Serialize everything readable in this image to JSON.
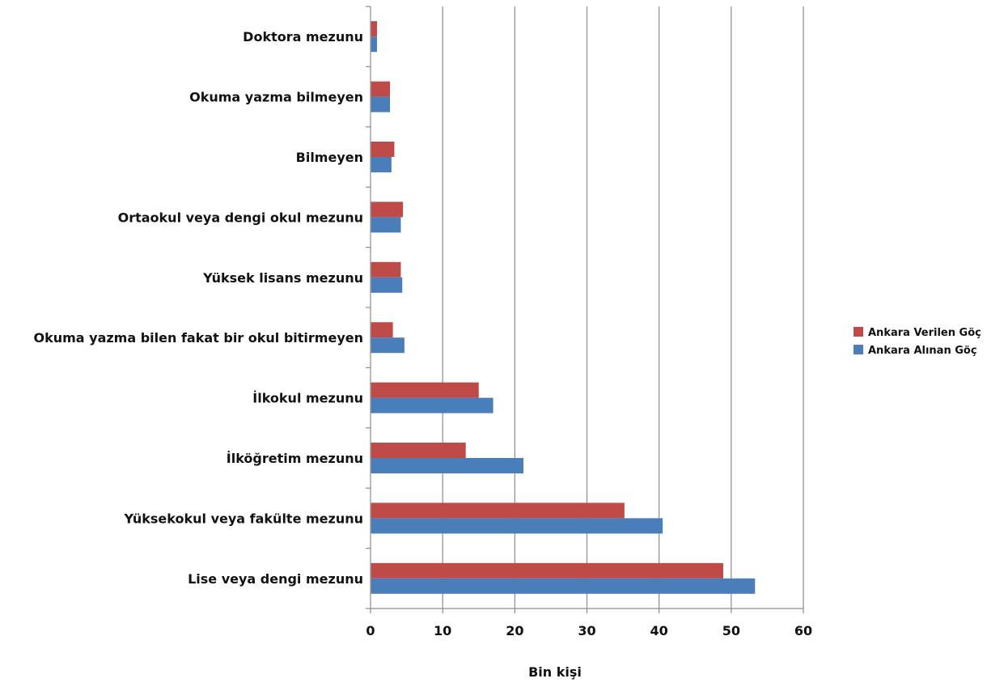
{
  "chart_data": {
    "type": "bar",
    "orientation": "horizontal",
    "xlabel": "Bin kişi",
    "ylabel": "",
    "xlim": [
      0,
      60
    ],
    "xticks": [
      0,
      10,
      20,
      30,
      40,
      50,
      60
    ],
    "grid": "vertical",
    "legend_position": "right",
    "categories": [
      "Doktora mezunu",
      "Okuma yazma bilmeyen",
      "Bilmeyen",
      "Ortaokul veya dengi okul mezunu",
      "Yüksek lisans mezunu",
      "Okuma yazma bilen fakat bir okul bitirmeyen",
      "İlkokul mezunu",
      "İlköğretim mezunu",
      "Yüksekokul veya fakülte mezunu",
      "Lise veya dengi mezunu"
    ],
    "series": [
      {
        "name": "Ankara Verilen Göç",
        "color": "#be4b48",
        "values": [
          0.9,
          2.7,
          3.3,
          4.5,
          4.2,
          3.1,
          15.0,
          13.2,
          35.2,
          48.9
        ]
      },
      {
        "name": "Ankara Alınan Göç",
        "color": "#4a7ebb",
        "values": [
          0.9,
          2.7,
          2.9,
          4.2,
          4.4,
          4.7,
          17.0,
          21.2,
          40.5,
          53.3
        ]
      }
    ]
  }
}
